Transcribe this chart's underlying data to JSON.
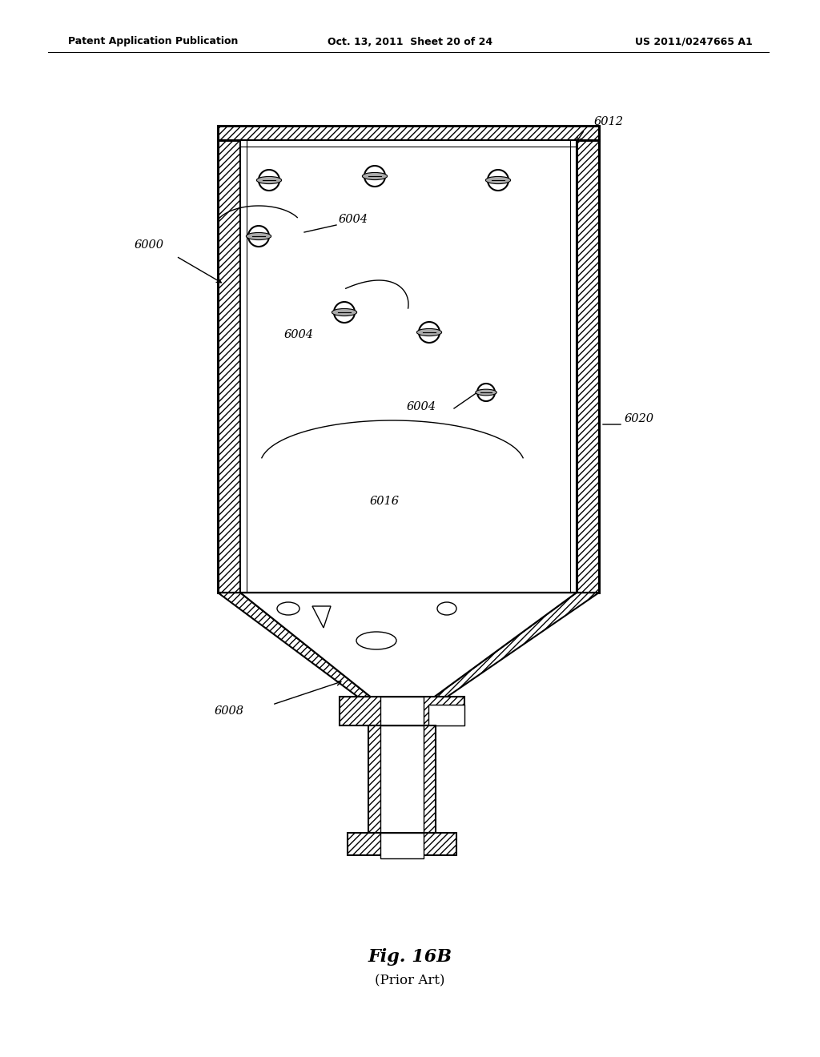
{
  "bg_color": "#ffffff",
  "header_left": "Patent Application Publication",
  "header_center": "Oct. 13, 2011  Sheet 20 of 24",
  "header_right": "US 2011/0247665 A1",
  "fig_label": "Fig. 16B",
  "fig_sublabel": "(Prior Art)"
}
